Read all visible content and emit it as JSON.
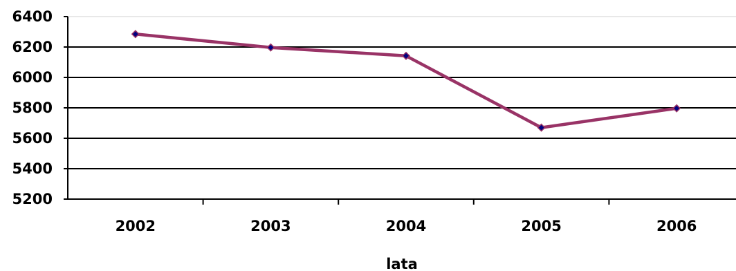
{
  "chart_data": {
    "type": "line",
    "categories": [
      "2002",
      "2003",
      "2004",
      "2005",
      "2006"
    ],
    "series": [
      {
        "values": [
          6285,
          6197,
          6142,
          5670,
          5797
        ]
      }
    ],
    "xlabel": "lata",
    "ylabel": "",
    "ylim": [
      5200,
      6400
    ],
    "yticks": [
      "5200",
      "5400",
      "5600",
      "5800",
      "6000",
      "6200",
      "6400"
    ],
    "grid": true,
    "legend": "none",
    "colors": {
      "line": "#993366",
      "marker": "#000080",
      "grid": "#000000"
    }
  }
}
